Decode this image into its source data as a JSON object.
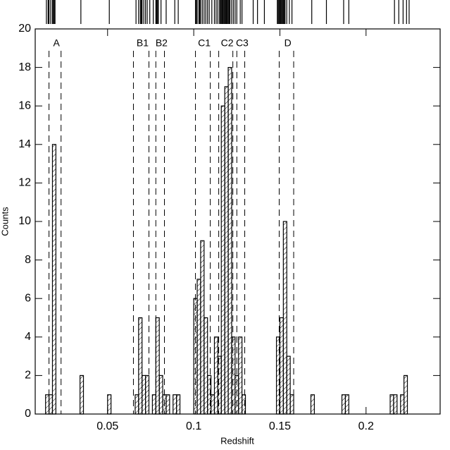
{
  "chart_data": {
    "type": "histogram",
    "x_label": "Redshift",
    "y_label": "Counts",
    "bins": [
      0.014,
      0.016,
      0.018,
      0.02,
      0.022,
      0.024,
      0.026,
      0.028,
      0.03,
      0.032,
      0.034,
      0.036,
      0.038,
      0.04,
      0.042,
      0.044,
      0.046,
      0.048,
      0.05,
      0.052,
      0.054,
      0.056,
      0.058,
      0.06,
      0.062,
      0.064,
      0.066,
      0.068,
      0.07,
      0.072,
      0.074,
      0.076,
      0.078,
      0.08,
      0.082,
      0.084,
      0.086,
      0.088,
      0.09,
      0.092,
      0.094,
      0.096,
      0.098,
      0.1,
      0.102,
      0.104,
      0.106,
      0.108,
      0.11,
      0.112,
      0.114,
      0.116,
      0.118,
      0.12,
      0.122,
      0.124,
      0.126,
      0.128,
      0.13,
      0.132,
      0.134,
      0.136,
      0.138,
      0.14,
      0.142,
      0.144,
      0.146,
      0.148,
      0.15,
      0.152,
      0.154,
      0.156,
      0.158,
      0.16,
      0.162,
      0.164,
      0.166,
      0.168,
      0.17,
      0.172,
      0.174,
      0.176,
      0.178,
      0.18,
      0.182,
      0.184,
      0.186,
      0.188,
      0.19,
      0.192,
      0.194,
      0.196,
      0.198,
      0.2,
      0.202,
      0.204,
      0.206,
      0.208,
      0.21,
      0.212,
      0.214,
      0.216,
      0.218,
      0.22,
      0.222,
      0.224
    ],
    "values": [
      1,
      1,
      14,
      0,
      0,
      0,
      0,
      0,
      0,
      0,
      2,
      0,
      0,
      0,
      0,
      0,
      0,
      0,
      1,
      0,
      0,
      0,
      0,
      0,
      0,
      0,
      1,
      5,
      2,
      2,
      0,
      1,
      5,
      2,
      1,
      1,
      0,
      1,
      1,
      0,
      0,
      0,
      0,
      6,
      7,
      9,
      5,
      2,
      1,
      4,
      3,
      16,
      17,
      18,
      4,
      2,
      4,
      1,
      0,
      0,
      0,
      0,
      0,
      0,
      0,
      0,
      0,
      4,
      5,
      10,
      3,
      1,
      0,
      0,
      0,
      0,
      0,
      1,
      0,
      0,
      0,
      0,
      0,
      0,
      0,
      0,
      1,
      1,
      0,
      0,
      0,
      0,
      0,
      0,
      0,
      0,
      0,
      0,
      0,
      0,
      1,
      1,
      0,
      1,
      2
    ],
    "color": "#000000",
    "xlim": [
      0.008,
      0.243
    ],
    "ylim": [
      0,
      20
    ],
    "xticks": [
      0.05,
      0.1,
      0.15,
      0.2
    ],
    "yticks": [
      0,
      2,
      4,
      6,
      8,
      10,
      12,
      14,
      16,
      18,
      20
    ],
    "groups": [
      {
        "label": "A",
        "range": [
          0.016,
          0.023
        ]
      },
      {
        "label": "B1",
        "range": [
          0.065,
          0.074
        ]
      },
      {
        "label": "B2",
        "range": [
          0.078,
          0.083
        ]
      },
      {
        "label": "C1",
        "range": [
          0.101,
          0.1096
        ]
      },
      {
        "label": "C2",
        "range": [
          0.1145,
          0.1227
        ]
      },
      {
        "label": "C3",
        "range": [
          0.125,
          0.1296
        ]
      },
      {
        "label": "D",
        "range": [
          0.1496,
          0.158
        ]
      }
    ],
    "rug": [
      0.0145,
      0.0155,
      0.016,
      0.017,
      0.018,
      0.0185,
      0.019,
      0.0195,
      0.0345,
      0.051,
      0.0665,
      0.068,
      0.069,
      0.0695,
      0.07,
      0.071,
      0.072,
      0.073,
      0.0745,
      0.0765,
      0.078,
      0.0785,
      0.079,
      0.0795,
      0.081,
      0.084,
      0.089,
      0.091,
      0.101,
      0.1015,
      0.102,
      0.103,
      0.1035,
      0.104,
      0.105,
      0.106,
      0.107,
      0.108,
      0.109,
      0.1105,
      0.112,
      0.113,
      0.114,
      0.115,
      0.1155,
      0.116,
      0.1165,
      0.117,
      0.1175,
      0.118,
      0.1185,
      0.119,
      0.1195,
      0.12,
      0.1205,
      0.121,
      0.122,
      0.123,
      0.124,
      0.125,
      0.127,
      0.128,
      0.1345,
      0.137,
      0.141,
      0.1485,
      0.149,
      0.1495,
      0.15,
      0.1505,
      0.151,
      0.1515,
      0.152,
      0.1525,
      0.153,
      0.154,
      0.1555,
      0.157,
      0.1685,
      0.177,
      0.187,
      0.19,
      0.2165,
      0.219,
      0.2215,
      0.2235,
      0.225
    ]
  }
}
